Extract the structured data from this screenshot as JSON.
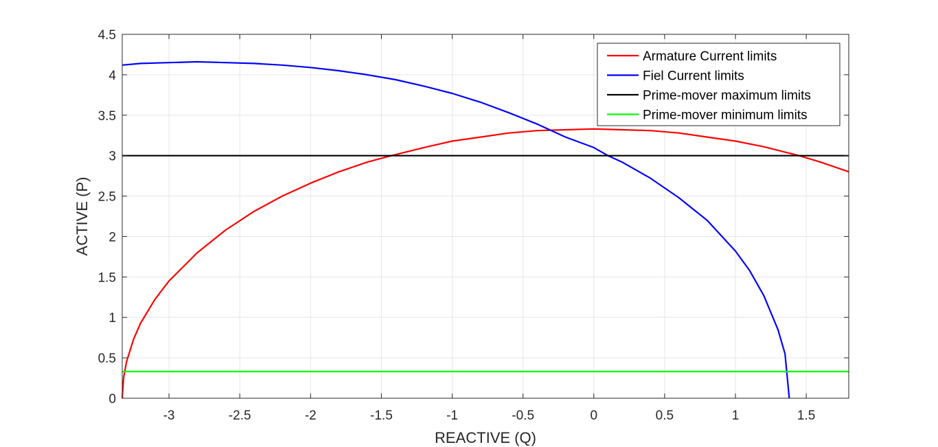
{
  "chart_data": {
    "type": "line",
    "title": "",
    "xlabel": "REACTIVE (Q)",
    "ylabel": "ACTIVE (P)",
    "xlim": [
      -3.33,
      1.8
    ],
    "ylim": [
      0,
      4.5
    ],
    "xticks": [
      -3,
      -2.5,
      -2,
      -1.5,
      -1,
      -0.5,
      0,
      0.5,
      1,
      1.5
    ],
    "xtick_labels": [
      "-3",
      "-2.5",
      "-2",
      "-1.5",
      "-1",
      "-0.5",
      "0",
      "0.5",
      "1",
      "1.5"
    ],
    "yticks": [
      0,
      0.5,
      1,
      1.5,
      2,
      2.5,
      3,
      3.5,
      4,
      4.5
    ],
    "ytick_labels": [
      "0",
      "0.5",
      "1",
      "1.5",
      "2",
      "2.5",
      "3",
      "3.5",
      "4",
      "4.5"
    ],
    "grid": true,
    "legend_position": "top-right",
    "series": [
      {
        "name": "Armature Current limits",
        "color": "#ff0000",
        "x": [
          -3.33,
          -3.32,
          -3.3,
          -3.25,
          -3.2,
          -3.1,
          -3.0,
          -2.8,
          -2.6,
          -2.4,
          -2.2,
          -2.0,
          -1.8,
          -1.6,
          -1.43,
          -1.2,
          -1.0,
          -0.8,
          -0.6,
          -0.4,
          -0.2,
          0.0,
          0.2,
          0.4,
          0.6,
          0.8,
          1.0,
          1.2,
          1.45,
          1.6,
          1.8
        ],
        "y": [
          0.0,
          0.26,
          0.45,
          0.73,
          0.93,
          1.22,
          1.45,
          1.8,
          2.08,
          2.31,
          2.5,
          2.66,
          2.8,
          2.92,
          3.0,
          3.1,
          3.18,
          3.23,
          3.28,
          3.31,
          3.32,
          3.33,
          3.32,
          3.31,
          3.28,
          3.23,
          3.18,
          3.11,
          3.0,
          2.92,
          2.8
        ]
      },
      {
        "name": "Fiel Current limits",
        "color": "#0000ff",
        "x": [
          -3.33,
          -3.2,
          -3.0,
          -2.8,
          -2.6,
          -2.4,
          -2.2,
          -2.0,
          -1.8,
          -1.6,
          -1.4,
          -1.2,
          -1.0,
          -0.8,
          -0.6,
          -0.4,
          -0.2,
          0.0,
          0.1,
          0.2,
          0.4,
          0.6,
          0.8,
          1.0,
          1.1,
          1.2,
          1.3,
          1.35,
          1.38
        ],
        "y": [
          4.12,
          4.14,
          4.15,
          4.16,
          4.15,
          4.14,
          4.12,
          4.09,
          4.05,
          4.0,
          3.94,
          3.86,
          3.77,
          3.66,
          3.53,
          3.39,
          3.23,
          3.1,
          3.0,
          2.92,
          2.72,
          2.48,
          2.2,
          1.82,
          1.58,
          1.27,
          0.85,
          0.55,
          0.0
        ]
      },
      {
        "name": "Prime-mover maximum limits",
        "color": "#000000",
        "x": [
          -3.33,
          1.8
        ],
        "y": [
          3.0,
          3.0
        ]
      },
      {
        "name": "Prime-mover minimum limits",
        "color": "#00ff00",
        "x": [
          -3.33,
          1.8
        ],
        "y": [
          0.33,
          0.33
        ]
      }
    ]
  }
}
